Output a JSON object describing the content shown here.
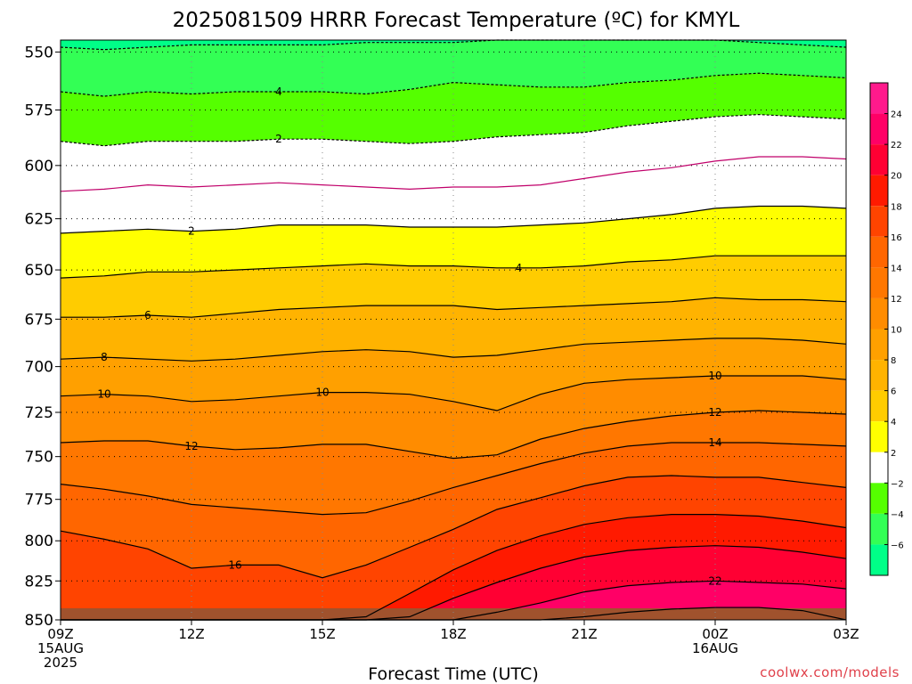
{
  "chart_data": {
    "type": "heatmap",
    "title": "2025081509 HRRR Forecast Temperature (ºC) for KMYL",
    "xlabel": "Forecast Time (UTC)",
    "ylabel": "",
    "credit": "coolwx.com/models",
    "x_range": [
      0,
      18
    ],
    "y_range": [
      850,
      545
    ],
    "y_scale": "pressure (log)",
    "x_ticks": [
      {
        "x": 0,
        "lines": [
          "09Z",
          "15AUG",
          "2025"
        ]
      },
      {
        "x": 3,
        "lines": [
          "12Z"
        ]
      },
      {
        "x": 6,
        "lines": [
          "15Z"
        ]
      },
      {
        "x": 9,
        "lines": [
          "18Z"
        ]
      },
      {
        "x": 12,
        "lines": [
          "21Z"
        ]
      },
      {
        "x": 15,
        "lines": [
          "00Z",
          "16AUG"
        ]
      },
      {
        "x": 18,
        "lines": [
          "03Z"
        ]
      }
    ],
    "y_ticks": [
      550,
      575,
      600,
      625,
      650,
      675,
      700,
      725,
      750,
      775,
      800,
      825,
      850
    ],
    "grid": "dotted",
    "colorbar": {
      "ticks": [
        "24",
        "22",
        "20",
        "18",
        "16",
        "14",
        "12",
        "10",
        "8",
        "6",
        "4",
        "2",
        "−2",
        "−4",
        "−6"
      ],
      "bands": [
        {
          "lo": 24,
          "hi": 26,
          "color": "#ff1a8c"
        },
        {
          "lo": 22,
          "hi": 24,
          "color": "#ff0066"
        },
        {
          "lo": 20,
          "hi": 22,
          "color": "#ff0033"
        },
        {
          "lo": 18,
          "hi": 20,
          "color": "#ff1a00"
        },
        {
          "lo": 16,
          "hi": 18,
          "color": "#ff4400"
        },
        {
          "lo": 14,
          "hi": 16,
          "color": "#ff6600"
        },
        {
          "lo": 12,
          "hi": 14,
          "color": "#ff7700"
        },
        {
          "lo": 10,
          "hi": 12,
          "color": "#ff8c00"
        },
        {
          "lo": 8,
          "hi": 10,
          "color": "#ffa000"
        },
        {
          "lo": 6,
          "hi": 8,
          "color": "#ffb300"
        },
        {
          "lo": 4,
          "hi": 6,
          "color": "#ffcc00"
        },
        {
          "lo": 2,
          "hi": 4,
          "color": "#ffff00"
        },
        {
          "lo": -2,
          "hi": 2,
          "color": "#ffffff"
        },
        {
          "lo": -4,
          "hi": -2,
          "color": "#55ff00"
        },
        {
          "lo": -6,
          "hi": -4,
          "color": "#33ff55"
        },
        {
          "lo": -8,
          "hi": -6,
          "color": "#00ff88"
        }
      ]
    },
    "ground_color": "#a0522d",
    "x_nodes": [
      0,
      1,
      2,
      3,
      4,
      5,
      6,
      7,
      8,
      9,
      10,
      11,
      12,
      13,
      14,
      15,
      16,
      17,
      18
    ],
    "series": [
      {
        "name": "-6",
        "dashed": true,
        "color": "#000000",
        "label": "",
        "y": [
          548,
          549,
          548,
          547,
          547,
          547,
          547,
          546,
          546,
          546,
          545,
          545,
          545,
          545,
          545,
          545,
          546,
          547,
          548
        ]
      },
      {
        "name": "-4",
        "dashed": true,
        "color": "#000000",
        "label": "4",
        "label_x": 5,
        "y": [
          567,
          569,
          567,
          568,
          567,
          567,
          567,
          568,
          566,
          563,
          564,
          565,
          565,
          563,
          562,
          560,
          559,
          560,
          561
        ]
      },
      {
        "name": "-2",
        "dashed": true,
        "color": "#000000",
        "label": "2",
        "label_x": 5,
        "y": [
          589,
          591,
          589,
          589,
          589,
          588,
          588,
          589,
          590,
          589,
          587,
          586,
          585,
          582,
          580,
          578,
          577,
          578,
          579
        ]
      },
      {
        "name": "0",
        "dashed": false,
        "color": "#c0006a",
        "label": "",
        "y": [
          612,
          611,
          609,
          610,
          609,
          608,
          609,
          610,
          611,
          610,
          610,
          609,
          606,
          603,
          601,
          598,
          596,
          596,
          597
        ]
      },
      {
        "name": "2",
        "dashed": false,
        "color": "#000000",
        "label": "2",
        "label_x": 3,
        "y": [
          632,
          631,
          630,
          631,
          630,
          628,
          628,
          628,
          629,
          629,
          629,
          628,
          627,
          625,
          623,
          620,
          619,
          619,
          620
        ]
      },
      {
        "name": "4",
        "dashed": false,
        "color": "#000000",
        "label": "4",
        "label_x": 10.5,
        "y": [
          654,
          653,
          651,
          651,
          650,
          649,
          648,
          647,
          648,
          648,
          649,
          649,
          648,
          646,
          645,
          643,
          643,
          643,
          643
        ]
      },
      {
        "name": "6",
        "dashed": false,
        "color": "#000000",
        "label": "6",
        "label_x": 2,
        "y": [
          674,
          674,
          673,
          674,
          672,
          670,
          669,
          668,
          668,
          668,
          670,
          669,
          668,
          667,
          666,
          664,
          665,
          665,
          666
        ]
      },
      {
        "name": "8",
        "dashed": false,
        "color": "#000000",
        "label": "8",
        "label_x": 1,
        "y": [
          696,
          695,
          696,
          697,
          696,
          694,
          692,
          691,
          692,
          695,
          694,
          691,
          688,
          687,
          686,
          685,
          685,
          686,
          688
        ]
      },
      {
        "name": "10",
        "dashed": false,
        "color": "#000000",
        "label": "10",
        "label_x": 1,
        "label2": "10",
        "label2_x": 6,
        "label3": "10",
        "label3_x": 15,
        "y": [
          716,
          715,
          716,
          719,
          718,
          716,
          714,
          714,
          715,
          719,
          724,
          715,
          709,
          707,
          706,
          705,
          705,
          705,
          707
        ]
      },
      {
        "name": "12",
        "dashed": false,
        "color": "#000000",
        "label": "12",
        "label_x": 3,
        "label2": "12",
        "label2_x": 15,
        "y": [
          742,
          741,
          741,
          744,
          746,
          745,
          743,
          743,
          747,
          751,
          749,
          740,
          734,
          730,
          727,
          725,
          724,
          725,
          726
        ]
      },
      {
        "name": "14",
        "dashed": false,
        "color": "#000000",
        "label": "14",
        "label_x": 15,
        "y": [
          766,
          769,
          773,
          778,
          780,
          782,
          784,
          783,
          776,
          768,
          761,
          754,
          748,
          744,
          742,
          742,
          742,
          743,
          744
        ]
      },
      {
        "name": "16",
        "dashed": false,
        "color": "#000000",
        "label": "16",
        "label_x": 4,
        "y": [
          794,
          799,
          805,
          817,
          815,
          815,
          823,
          815,
          804,
          793,
          781,
          774,
          767,
          762,
          761,
          762,
          762,
          765,
          768
        ]
      },
      {
        "name": "18",
        "dashed": false,
        "color": "#000000",
        "label": "",
        "y": [
          850,
          850,
          850,
          850,
          850,
          850,
          850,
          848,
          833,
          818,
          806,
          797,
          790,
          786,
          784,
          784,
          785,
          788,
          792
        ]
      },
      {
        "name": "20",
        "dashed": false,
        "color": "#000000",
        "label": "",
        "y": [
          850,
          850,
          850,
          850,
          850,
          850,
          850,
          850,
          848,
          836,
          826,
          817,
          810,
          806,
          804,
          803,
          804,
          807,
          811
        ]
      },
      {
        "name": "22",
        "dashed": false,
        "color": "#000000",
        "label": "22",
        "label_x": 15,
        "y": [
          850,
          850,
          850,
          850,
          850,
          850,
          850,
          850,
          850,
          850,
          845,
          839,
          832,
          828,
          826,
          825,
          826,
          827,
          830
        ]
      },
      {
        "name": "24",
        "dashed": false,
        "color": "#000000",
        "label": "",
        "y": [
          850,
          850,
          850,
          850,
          850,
          850,
          850,
          850,
          850,
          850,
          850,
          850,
          848,
          845,
          843,
          842,
          842,
          844,
          850
        ]
      }
    ]
  }
}
